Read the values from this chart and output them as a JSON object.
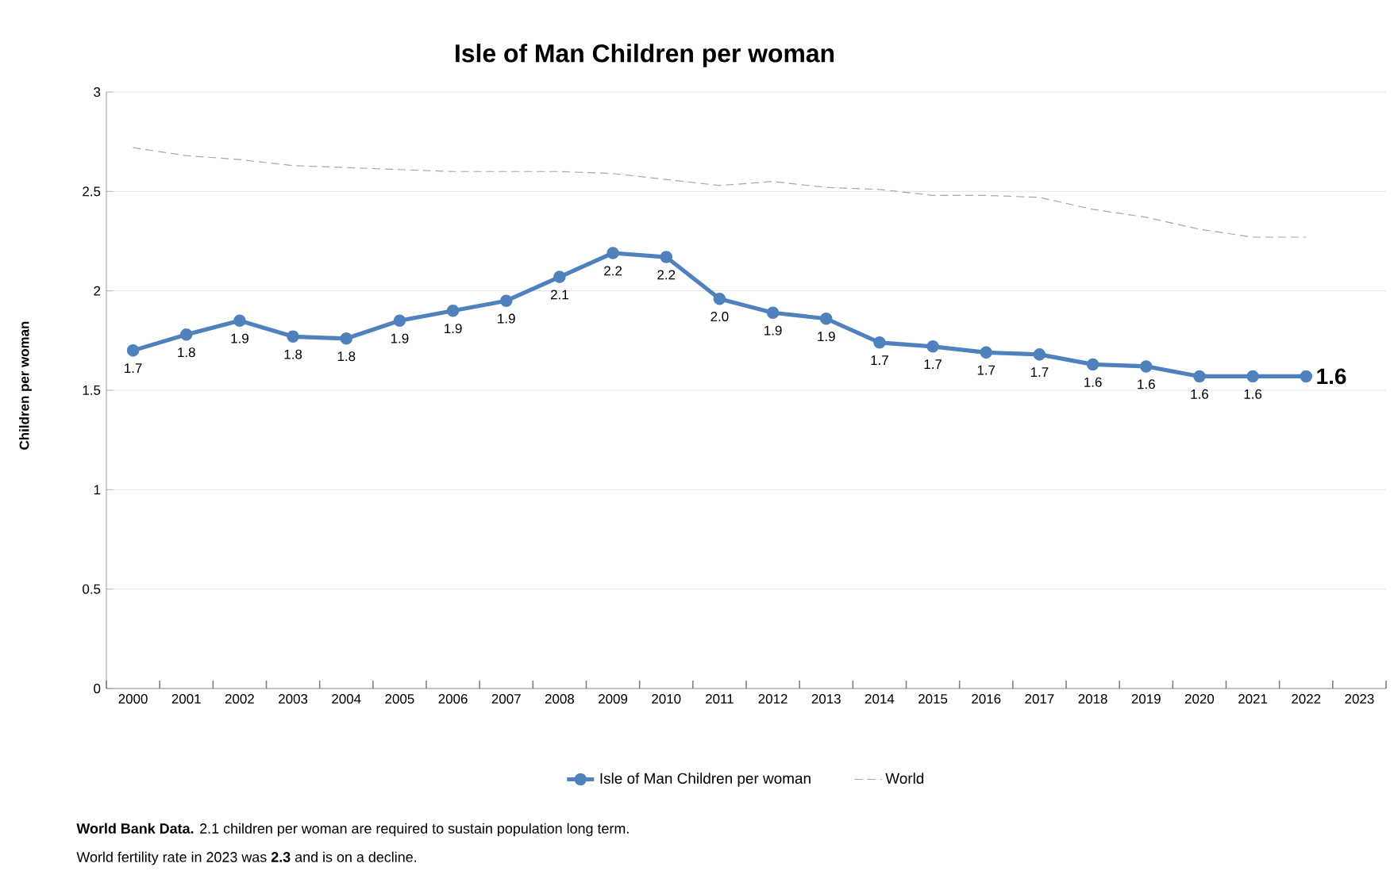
{
  "chart_data": {
    "type": "line",
    "title": "Isle of Man Children per woman",
    "ylabel": "Children per woman",
    "categories": [
      "2000",
      "2001",
      "2002",
      "2003",
      "2004",
      "2005",
      "2006",
      "2007",
      "2008",
      "2009",
      "2010",
      "2011",
      "2012",
      "2013",
      "2014",
      "2015",
      "2016",
      "2017",
      "2018",
      "2019",
      "2020",
      "2021",
      "2022",
      "2023"
    ],
    "series": [
      {
        "name": "Isle of Man Children per woman",
        "color": "#4f81bd",
        "marker": "circle",
        "line_style": "solid",
        "values": [
          1.7,
          1.78,
          1.85,
          1.77,
          1.76,
          1.85,
          1.9,
          1.95,
          2.07,
          2.19,
          2.17,
          1.96,
          1.89,
          1.86,
          1.74,
          1.72,
          1.69,
          1.68,
          1.63,
          1.62,
          1.57,
          1.57,
          1.57,
          null
        ],
        "value_labels": [
          "1.7",
          "1.8",
          "1.9",
          "1.8",
          "1.8",
          "1.9",
          "1.9",
          "1.9",
          "2.1",
          "2.2",
          "2.2",
          "2.0",
          "1.9",
          "1.9",
          "1.7",
          "1.7",
          "1.7",
          "1.7",
          "1.6",
          "1.6",
          "1.6",
          "1.6",
          "1.6",
          null
        ]
      },
      {
        "name": "World",
        "color": "#a6a6a6",
        "marker": "none",
        "line_style": "dashed",
        "values": [
          2.72,
          2.68,
          2.66,
          2.63,
          2.62,
          2.61,
          2.6,
          2.6,
          2.6,
          2.59,
          2.56,
          2.53,
          2.55,
          2.52,
          2.51,
          2.48,
          2.48,
          2.47,
          2.41,
          2.37,
          2.31,
          2.27,
          2.27,
          null
        ]
      }
    ],
    "ylim": [
      0,
      3
    ],
    "yticks": [
      0,
      0.5,
      1,
      1.5,
      2,
      2.5,
      3
    ],
    "grid": "y",
    "legend": "bottom",
    "annotations": [
      "**World Bank Data.**    2.1 children per woman are required to sustain population long term.",
      "World fertility rate in 2023 was **2.3** and is on a decline."
    ]
  }
}
